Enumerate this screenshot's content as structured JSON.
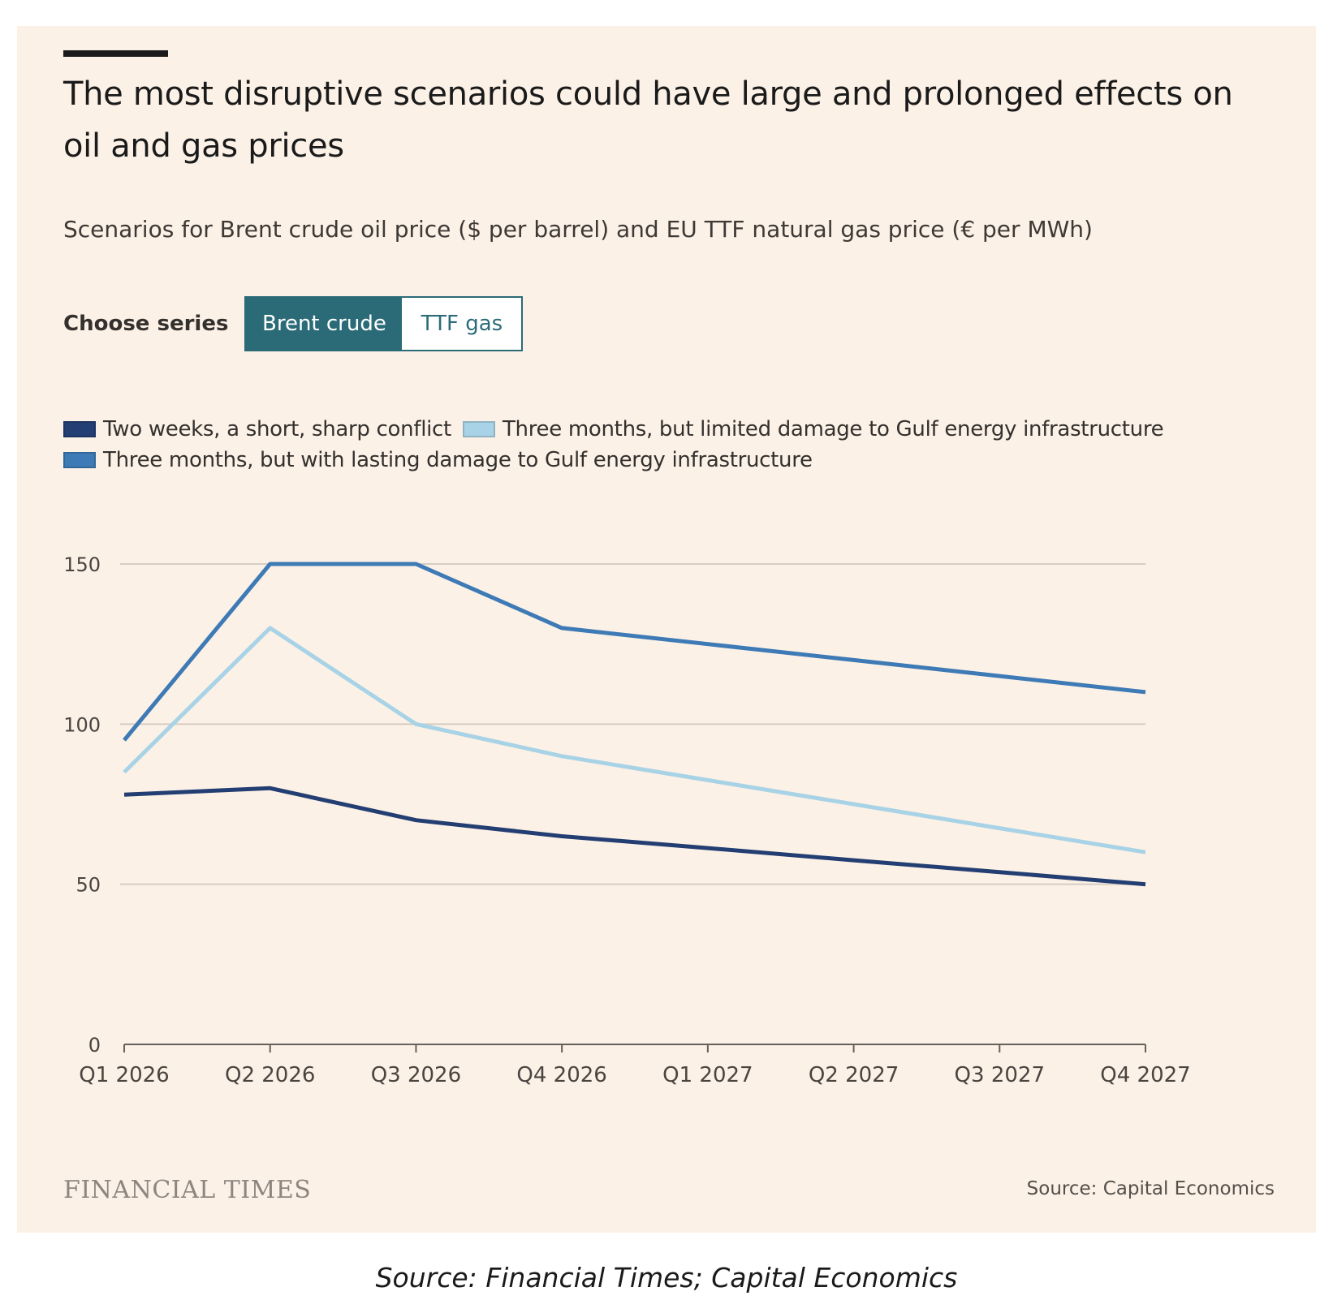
{
  "title": "The most disruptive scenarios could have large and prolonged effects on oil and gas prices",
  "subtitle": "Scenarios for Brent crude oil price ($ per barrel) and EU TTF natural gas price (€ per MWh)",
  "controls": {
    "label": "Choose series",
    "options": [
      {
        "label": "Brent crude",
        "selected": true
      },
      {
        "label": "TTF gas",
        "selected": false
      }
    ]
  },
  "legend": [
    {
      "label": "Two weeks, a short, sharp conflict",
      "color": "#233e72"
    },
    {
      "label": "Three months, but limited damage to Gulf energy infrastructure",
      "color": "#a8d3e6"
    },
    {
      "label": "Three months, but with lasting damage to Gulf energy infrastructure",
      "color": "#3d7ab6"
    }
  ],
  "chart_data": {
    "type": "line",
    "x": [
      "Q1 2026",
      "Q2 2026",
      "Q3 2026",
      "Q4 2026",
      "Q1 2027",
      "Q2 2027",
      "Q3 2027",
      "Q4 2027"
    ],
    "ylim": [
      0,
      150
    ],
    "yticks": [
      0,
      50,
      100,
      150
    ],
    "grid": true,
    "legend_position": "top",
    "series": [
      {
        "name": "Two weeks, a short, sharp conflict",
        "color": "#233e72",
        "values": [
          78,
          80,
          70,
          65,
          61.3,
          57.5,
          53.8,
          50
        ]
      },
      {
        "name": "Three months, but limited damage to Gulf energy infrastructure",
        "color": "#a8d3e6",
        "values": [
          85,
          130,
          100,
          90,
          82.5,
          75,
          67.5,
          60
        ]
      },
      {
        "name": "Three months, but with lasting damage to Gulf energy infrastructure",
        "color": "#3d7ab6",
        "values": [
          95,
          150,
          150,
          130,
          125,
          120,
          115,
          110
        ]
      }
    ]
  },
  "footer": {
    "logo": "FINANCIAL TIMES",
    "source": "Source: Capital Economics"
  },
  "caption": "Source: Financial Times; Capital Economics"
}
